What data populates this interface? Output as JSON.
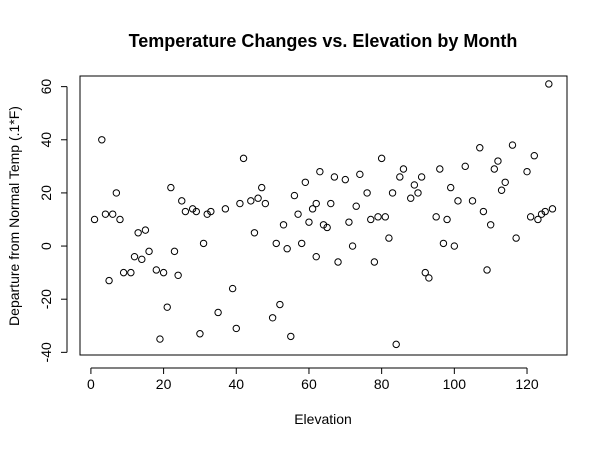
{
  "chart_data": {
    "type": "scatter",
    "title": "Temperature Changes vs. Elevation by Month",
    "xlabel": "Elevation",
    "ylabel": "Departure from Normal Temp (.1*F)",
    "xlim": [
      -3,
      131
    ],
    "ylim": [
      -41,
      64
    ],
    "x_ticks": [
      0,
      20,
      40,
      60,
      80,
      100,
      120
    ],
    "y_ticks": [
      -40,
      -20,
      0,
      20,
      40,
      60
    ],
    "grid": false,
    "legend": "none",
    "points": [
      {
        "x": 1,
        "y": 10
      },
      {
        "x": 3,
        "y": 40
      },
      {
        "x": 4,
        "y": 12
      },
      {
        "x": 5,
        "y": -13
      },
      {
        "x": 6,
        "y": 12
      },
      {
        "x": 7,
        "y": 20
      },
      {
        "x": 8,
        "y": 10
      },
      {
        "x": 9,
        "y": -10
      },
      {
        "x": 11,
        "y": -10
      },
      {
        "x": 12,
        "y": -4
      },
      {
        "x": 13,
        "y": 5
      },
      {
        "x": 14,
        "y": -5
      },
      {
        "x": 15,
        "y": 6
      },
      {
        "x": 16,
        "y": -2
      },
      {
        "x": 18,
        "y": -9
      },
      {
        "x": 19,
        "y": -35
      },
      {
        "x": 20,
        "y": -10
      },
      {
        "x": 21,
        "y": -23
      },
      {
        "x": 22,
        "y": 22
      },
      {
        "x": 23,
        "y": -2
      },
      {
        "x": 24,
        "y": -11
      },
      {
        "x": 25,
        "y": 17
      },
      {
        "x": 26,
        "y": 13
      },
      {
        "x": 28,
        "y": 14
      },
      {
        "x": 29,
        "y": 13
      },
      {
        "x": 30,
        "y": -33
      },
      {
        "x": 31,
        "y": 1
      },
      {
        "x": 32,
        "y": 12
      },
      {
        "x": 33,
        "y": 13
      },
      {
        "x": 35,
        "y": -25
      },
      {
        "x": 37,
        "y": 14
      },
      {
        "x": 39,
        "y": -16
      },
      {
        "x": 40,
        "y": -31
      },
      {
        "x": 41,
        "y": 16
      },
      {
        "x": 42,
        "y": 33
      },
      {
        "x": 44,
        "y": 17
      },
      {
        "x": 45,
        "y": 5
      },
      {
        "x": 46,
        "y": 18
      },
      {
        "x": 47,
        "y": 22
      },
      {
        "x": 48,
        "y": 16
      },
      {
        "x": 50,
        "y": -27
      },
      {
        "x": 51,
        "y": 1
      },
      {
        "x": 52,
        "y": -22
      },
      {
        "x": 53,
        "y": 8
      },
      {
        "x": 54,
        "y": -1
      },
      {
        "x": 55,
        "y": -34
      },
      {
        "x": 56,
        "y": 19
      },
      {
        "x": 57,
        "y": 12
      },
      {
        "x": 58,
        "y": 1
      },
      {
        "x": 59,
        "y": 24
      },
      {
        "x": 60,
        "y": 9
      },
      {
        "x": 61,
        "y": 14
      },
      {
        "x": 62,
        "y": 16
      },
      {
        "x": 62,
        "y": -4
      },
      {
        "x": 63,
        "y": 28
      },
      {
        "x": 64,
        "y": 8
      },
      {
        "x": 65,
        "y": 7
      },
      {
        "x": 66,
        "y": 16
      },
      {
        "x": 67,
        "y": 26
      },
      {
        "x": 68,
        "y": -6
      },
      {
        "x": 70,
        "y": 25
      },
      {
        "x": 71,
        "y": 9
      },
      {
        "x": 72,
        "y": 0
      },
      {
        "x": 73,
        "y": 15
      },
      {
        "x": 74,
        "y": 27
      },
      {
        "x": 76,
        "y": 20
      },
      {
        "x": 77,
        "y": 10
      },
      {
        "x": 78,
        "y": -6
      },
      {
        "x": 79,
        "y": 11
      },
      {
        "x": 80,
        "y": 33
      },
      {
        "x": 81,
        "y": 11
      },
      {
        "x": 82,
        "y": 3
      },
      {
        "x": 83,
        "y": 20
      },
      {
        "x": 84,
        "y": -37
      },
      {
        "x": 85,
        "y": 26
      },
      {
        "x": 86,
        "y": 29
      },
      {
        "x": 88,
        "y": 18
      },
      {
        "x": 89,
        "y": 23
      },
      {
        "x": 90,
        "y": 20
      },
      {
        "x": 91,
        "y": 26
      },
      {
        "x": 92,
        "y": -10
      },
      {
        "x": 93,
        "y": -12
      },
      {
        "x": 95,
        "y": 11
      },
      {
        "x": 96,
        "y": 29
      },
      {
        "x": 97,
        "y": 1
      },
      {
        "x": 98,
        "y": 10
      },
      {
        "x": 99,
        "y": 22
      },
      {
        "x": 100,
        "y": 0
      },
      {
        "x": 101,
        "y": 17
      },
      {
        "x": 103,
        "y": 30
      },
      {
        "x": 105,
        "y": 17
      },
      {
        "x": 107,
        "y": 37
      },
      {
        "x": 108,
        "y": 13
      },
      {
        "x": 109,
        "y": -9
      },
      {
        "x": 110,
        "y": 8
      },
      {
        "x": 111,
        "y": 29
      },
      {
        "x": 112,
        "y": 32
      },
      {
        "x": 113,
        "y": 21
      },
      {
        "x": 114,
        "y": 24
      },
      {
        "x": 116,
        "y": 38
      },
      {
        "x": 117,
        "y": 3
      },
      {
        "x": 120,
        "y": 28
      },
      {
        "x": 121,
        "y": 11
      },
      {
        "x": 122,
        "y": 34
      },
      {
        "x": 123,
        "y": 10
      },
      {
        "x": 124,
        "y": 12
      },
      {
        "x": 125,
        "y": 13
      },
      {
        "x": 126,
        "y": 61
      },
      {
        "x": 127,
        "y": 14
      }
    ]
  }
}
